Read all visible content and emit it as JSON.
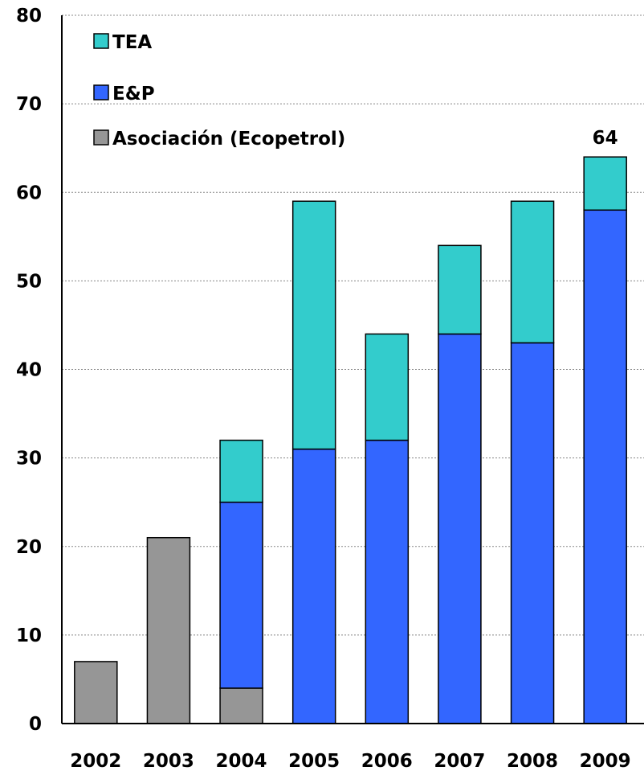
{
  "chart_data": {
    "type": "bar",
    "stacked": true,
    "title": "",
    "xlabel": "",
    "ylabel": "",
    "categories": [
      "2002",
      "2003",
      "2004",
      "2005",
      "2006",
      "2007",
      "2008",
      "2009"
    ],
    "ylim": [
      0,
      80
    ],
    "yticks": [
      0,
      10,
      20,
      30,
      40,
      50,
      60,
      70,
      80
    ],
    "grid": "horizontal dotted",
    "legend_position": "top-left",
    "series": [
      {
        "name": "Asociación (Ecopetrol)",
        "color": "#969696",
        "values": [
          7,
          21,
          4,
          0,
          0,
          0,
          0,
          0
        ]
      },
      {
        "name": "E&P",
        "color": "#3366ff",
        "values": [
          0,
          0,
          21,
          31,
          32,
          44,
          43,
          58
        ]
      },
      {
        "name": "TEA",
        "color": "#33cccc",
        "values": [
          0,
          0,
          7,
          28,
          12,
          10,
          16,
          6
        ]
      }
    ],
    "legend_order": [
      "TEA",
      "E&P",
      "Asociación (Ecopetrol)"
    ],
    "annotations": [
      {
        "category": "2009",
        "text": "64"
      }
    ]
  }
}
